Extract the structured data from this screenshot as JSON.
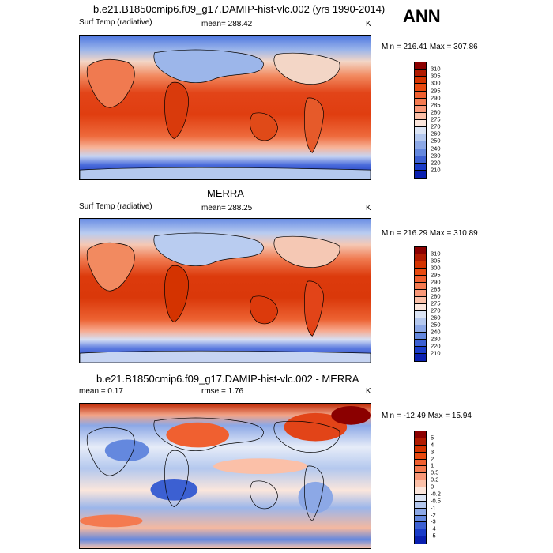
{
  "header": {
    "title": "b.e21.B1850cmip6.f09_g17.DAMIP-hist-vlc.002 (yrs 1990-2014)",
    "season": "ANN"
  },
  "panels": [
    {
      "left_label": "Surf Temp (radiative)",
      "center_label": "mean= 288.42",
      "right_label": "K",
      "minmax": "Min = 216.41 Max = 307.86",
      "colorbar": {
        "labels": [
          "310",
          "305",
          "300",
          "295",
          "290",
          "285",
          "280",
          "275",
          "270",
          "260",
          "250",
          "240",
          "230",
          "220",
          "210"
        ],
        "colors": [
          "#8b0000",
          "#b01a00",
          "#d43300",
          "#e84a10",
          "#f06030",
          "#f47a50",
          "#f89878",
          "#fbc0a8",
          "#fbe6dc",
          "#dbe4f4",
          "#b4c8ee",
          "#8ca8e6",
          "#6488de",
          "#3c60d2",
          "#1a3cc8",
          "#0a20b0"
        ]
      }
    },
    {
      "title": "MERRA",
      "left_label": "Surf Temp (radiative)",
      "center_label": "mean= 288.25",
      "right_label": "K",
      "minmax": "Min = 216.29 Max = 310.89",
      "colorbar": {
        "labels": [
          "310",
          "305",
          "300",
          "295",
          "290",
          "285",
          "280",
          "275",
          "270",
          "260",
          "250",
          "240",
          "230",
          "220",
          "210"
        ],
        "colors": [
          "#8b0000",
          "#b01a00",
          "#d43300",
          "#e84a10",
          "#f06030",
          "#f47a50",
          "#f89878",
          "#fbc0a8",
          "#fbe6dc",
          "#dbe4f4",
          "#b4c8ee",
          "#8ca8e6",
          "#6488de",
          "#3c60d2",
          "#1a3cc8",
          "#0a20b0"
        ]
      }
    },
    {
      "title": "b.e21.B1850cmip6.f09_g17.DAMIP-hist-vlc.002 - MERRA",
      "left_label": "mean =   0.17",
      "center_label": "rmse =   1.76",
      "right_label": "K",
      "minmax": "Min = -12.49 Max =  15.94",
      "colorbar": {
        "labels": [
          "5",
          "4",
          "3",
          "2",
          "1",
          "0.5",
          "0.2",
          "0",
          "-0.2",
          "-0.5",
          "-1",
          "-2",
          "-3",
          "-4",
          "-5"
        ],
        "colors": [
          "#8b0000",
          "#b01a00",
          "#d43300",
          "#e84a10",
          "#f06030",
          "#f47a50",
          "#f89878",
          "#fbc0a8",
          "#fbe6dc",
          "#dbe4f4",
          "#b4c8ee",
          "#8ca8e6",
          "#6488de",
          "#3c60d2",
          "#1a3cc8",
          "#0a20b0"
        ]
      }
    }
  ]
}
